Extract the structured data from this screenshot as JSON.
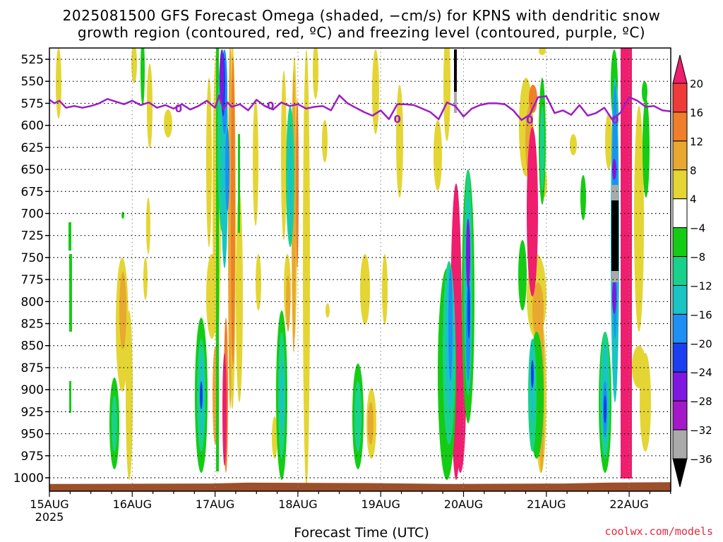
{
  "chart_data": {
    "type": "heatmap",
    "title_line1": "2025081500 GFS Forecast Omega (shaded, −cm/s) for KPNS with dendritic snow",
    "title_line2": "growth region (contoured, red, ºC) and freezing level (contoured, purple, ºC)",
    "xlabel": "Forecast Time (UTC)",
    "credit": "coolwx.com/models",
    "y_axis": {
      "label": "",
      "inverted": true,
      "range": [
        520,
        1010
      ],
      "ticks": [
        525,
        550,
        575,
        600,
        625,
        650,
        675,
        700,
        725,
        750,
        775,
        800,
        825,
        850,
        875,
        900,
        925,
        950,
        975,
        1000
      ]
    },
    "x_axis": {
      "range": [
        "15AUG00",
        "22AUG12"
      ],
      "ticks": [
        {
          "label": "15AUG",
          "day": 0
        },
        {
          "label": "16AUG",
          "day": 1
        },
        {
          "label": "17AUG",
          "day": 2
        },
        {
          "label": "18AUG",
          "day": 3
        },
        {
          "label": "19AUG",
          "day": 4
        },
        {
          "label": "20AUG",
          "day": 5
        },
        {
          "label": "21AUG",
          "day": 6
        },
        {
          "label": "22AUG",
          "day": 7
        }
      ],
      "year_label": "2025",
      "grid": "dotted"
    },
    "colorbar": {
      "labels": [
        "20",
        "16",
        "12",
        "8",
        "4",
        "−4",
        "−8",
        "−12",
        "−16",
        "−20",
        "−24",
        "−28",
        "−32",
        "−36"
      ],
      "colors": [
        "#ef1e6e",
        "#ef3a3a",
        "#ef7f2a",
        "#e9a830",
        "#e4d534",
        "#ffffff",
        "#15cc15",
        "#18d28c",
        "#18c4c4",
        "#1d8ff5",
        "#1a3ef0",
        "#7e18e0",
        "#a418c8",
        "#aaaaaa",
        "#000000"
      ]
    },
    "freezing_level": {
      "contour_label": "0",
      "color": "#9c1ec4",
      "days": [
        0,
        0.06,
        0.12,
        0.2,
        0.3,
        0.4,
        0.5,
        0.6,
        0.7,
        0.8,
        0.9,
        1.0,
        1.1,
        1.2,
        1.3,
        1.4,
        1.5,
        1.6,
        1.7,
        1.8,
        1.9,
        2.0,
        2.05,
        2.1,
        2.15,
        2.2,
        2.3,
        2.4,
        2.5,
        2.6,
        2.7,
        2.8,
        2.9,
        3.0,
        3.1,
        3.2,
        3.3,
        3.4,
        3.5,
        3.6,
        3.7,
        3.8,
        3.9,
        4.0,
        4.1,
        4.2,
        4.3,
        4.4,
        4.5,
        4.6,
        4.7,
        4.8,
        4.9,
        5.0,
        5.1,
        5.2,
        5.3,
        5.4,
        5.5,
        5.6,
        5.7,
        5.8,
        5.9,
        6.0,
        6.1,
        6.2,
        6.3,
        6.4,
        6.5,
        6.6,
        6.7,
        6.8,
        6.9,
        7.0,
        7.1,
        7.2,
        7.3,
        7.4,
        7.5
      ],
      "pressure_hpa": [
        571,
        575,
        572,
        580,
        578,
        580,
        578,
        575,
        570,
        573,
        576,
        572,
        577,
        574,
        580,
        577,
        581,
        576,
        582,
        578,
        572,
        580,
        566,
        582,
        574,
        579,
        576,
        583,
        571,
        578,
        582,
        574,
        578,
        576,
        581,
        579,
        578,
        583,
        566,
        575,
        580,
        585,
        589,
        583,
        593,
        576,
        576,
        577,
        581,
        585,
        593,
        574,
        578,
        590,
        581,
        577,
        575,
        575,
        576,
        583,
        594,
        588,
        568,
        567,
        586,
        583,
        588,
        577,
        589,
        586,
        580,
        594,
        585,
        568,
        572,
        579,
        578,
        583,
        584
      ]
    },
    "ground_color": "#9c4f2a"
  }
}
